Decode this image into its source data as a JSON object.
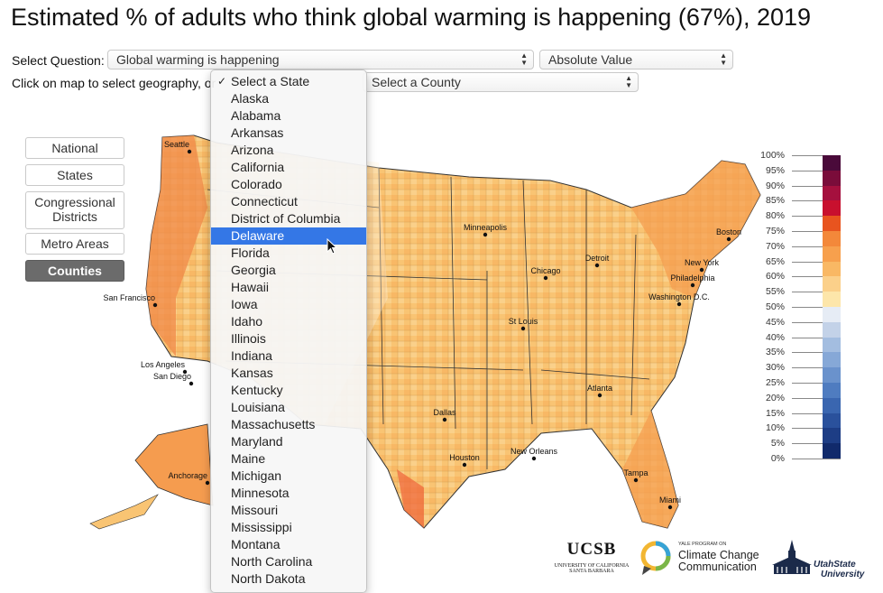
{
  "title": "Estimated % of adults who think global warming is happening (67%), 2019",
  "controls": {
    "question_label": "Select Question:",
    "question_value": "Global warming is happening",
    "value_type": "Absolute Value",
    "map_instruction": "Click on map to select geography, or",
    "county_value": "Select a County"
  },
  "geo_buttons": [
    {
      "label": "National",
      "active": false
    },
    {
      "label": "States",
      "active": false
    },
    {
      "label": "Congressional Districts",
      "active": false
    },
    {
      "label": "Metro Areas",
      "active": false
    },
    {
      "label": "Counties",
      "active": true
    }
  ],
  "state_dropdown": {
    "selected": "Select a State",
    "highlighted": "Delaware",
    "options": [
      "Select a State",
      "Alaska",
      "Alabama",
      "Arkansas",
      "Arizona",
      "California",
      "Colorado",
      "Connecticut",
      "District of Columbia",
      "Delaware",
      "Florida",
      "Georgia",
      "Hawaii",
      "Iowa",
      "Idaho",
      "Illinois",
      "Indiana",
      "Kansas",
      "Kentucky",
      "Louisiana",
      "Massachusetts",
      "Maryland",
      "Maine",
      "Michigan",
      "Minnesota",
      "Missouri",
      "Mississippi",
      "Montana",
      "North Carolina",
      "North Dakota"
    ]
  },
  "map": {
    "cities": [
      "Seattle",
      "San Francisco",
      "Los Angeles",
      "San Diego",
      "Anchorage",
      "Minneapolis",
      "Chicago",
      "Detroit",
      "St Louis",
      "Dallas",
      "Houston",
      "New Orleans",
      "Atlanta",
      "Tampa",
      "Miami",
      "Boston",
      "New York",
      "Philadelphia",
      "Washington D.C."
    ],
    "colors": {
      "very_high": "#ef6a3c",
      "high": "#f59c4f",
      "mid": "#f9c473",
      "low": "#fbe09e",
      "below_half": "#c9d7ea"
    }
  },
  "legend": {
    "labels": [
      "100%",
      "95%",
      "90%",
      "85%",
      "80%",
      "75%",
      "70%",
      "65%",
      "60%",
      "55%",
      "50%",
      "45%",
      "40%",
      "35%",
      "30%",
      "25%",
      "20%",
      "15%",
      "10%",
      "5%",
      "0%"
    ],
    "colors": [
      "#4a0a3a",
      "#7a0c3a",
      "#a5103e",
      "#c8102e",
      "#e8541f",
      "#f3883a",
      "#f7a04d",
      "#f9b864",
      "#fbd08a",
      "#fde6aa",
      "#e6ecf5",
      "#c3d2e8",
      "#a3bde0",
      "#86a8d7",
      "#6a92cc",
      "#4f7cc0",
      "#3a66b0",
      "#2a519c",
      "#1d3d85",
      "#112a6b"
    ]
  },
  "logos": {
    "ucsb_name": "UCSB",
    "ucsb_sub1": "UNIVERSITY OF CALIFORNIA",
    "ucsb_sub2": "SANTA BARBARA",
    "yale_small": "YALE PROGRAM ON",
    "yale_line1": "Climate Change",
    "yale_line2": "Communication",
    "usu_line1": "UtahState",
    "usu_line2": "University"
  }
}
